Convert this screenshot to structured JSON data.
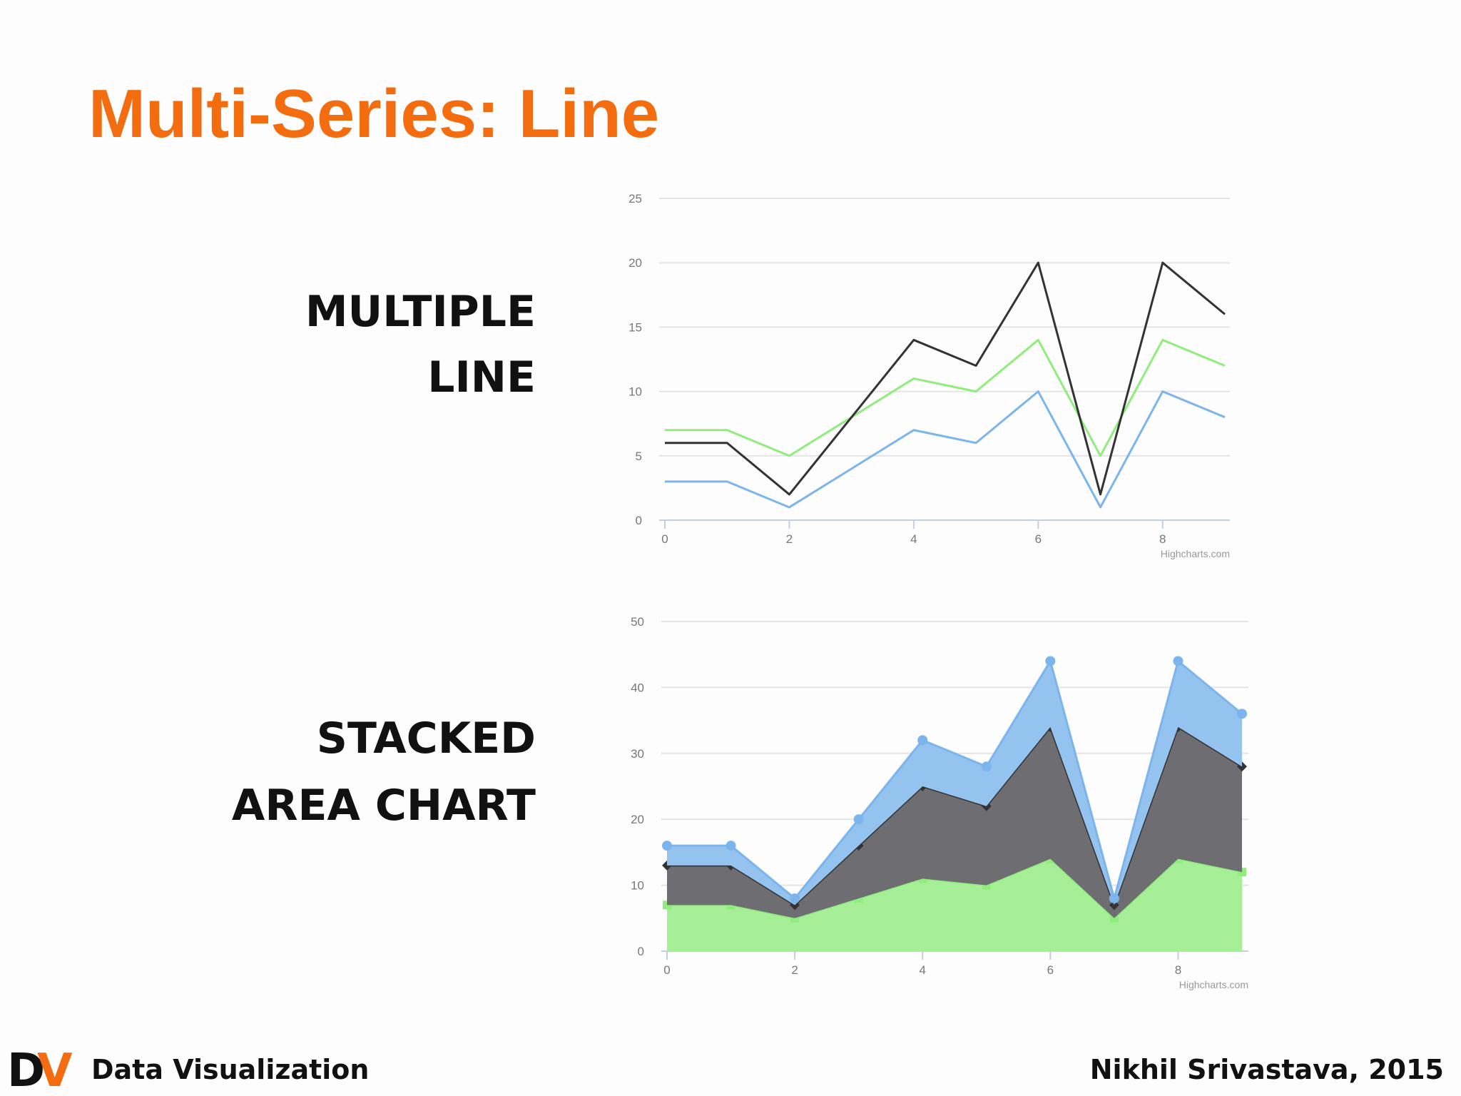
{
  "title": "Multi-Series: Line",
  "chart_data": [
    {
      "type": "line",
      "caption_lines": [
        "MULTIPLE",
        "LINE"
      ],
      "x": [
        0,
        1,
        2,
        3,
        4,
        5,
        6,
        7,
        8,
        9
      ],
      "series": [
        {
          "color": "#7cb5ec",
          "values": [
            3,
            3,
            1,
            4,
            7,
            6,
            10,
            1,
            10,
            8
          ]
        },
        {
          "color": "#90ed7d",
          "values": [
            7,
            7,
            5,
            8,
            11,
            10,
            14,
            5,
            14,
            12
          ]
        },
        {
          "color": "#333333",
          "values": [
            6,
            6,
            2,
            8,
            14,
            12,
            20,
            2,
            20,
            16
          ]
        }
      ],
      "xlim": [
        0,
        9
      ],
      "xticks": [
        0,
        2,
        4,
        6,
        8
      ],
      "ylim": [
        0,
        25
      ],
      "yticks": [
        0,
        5,
        10,
        15,
        20,
        25
      ],
      "grid": true,
      "credits": "Highcharts.com"
    },
    {
      "type": "area",
      "stacked": true,
      "caption_lines": [
        "STACKED",
        "AREA CHART"
      ],
      "x": [
        0,
        1,
        2,
        3,
        4,
        5,
        6,
        7,
        8,
        9
      ],
      "series": [
        {
          "color": "#90ed7d",
          "fill": "#a6ef97",
          "marker": "square",
          "values": [
            7,
            7,
            5,
            8,
            11,
            10,
            14,
            5,
            14,
            12
          ]
        },
        {
          "color": "#333333",
          "fill": "#6d6d72",
          "marker": "diamond",
          "values": [
            6,
            6,
            2,
            8,
            14,
            12,
            20,
            2,
            20,
            16
          ]
        },
        {
          "color": "#7cb5ec",
          "fill": "#94c3ef",
          "marker": "circle",
          "values": [
            3,
            3,
            1,
            4,
            7,
            6,
            10,
            1,
            10,
            8
          ]
        }
      ],
      "xlim": [
        0,
        9
      ],
      "xticks": [
        0,
        2,
        4,
        6,
        8
      ],
      "ylim": [
        0,
        50
      ],
      "yticks": [
        0,
        10,
        20,
        30,
        40,
        50
      ],
      "grid": true,
      "credits": "Highcharts.com"
    }
  ],
  "footer": {
    "logo": [
      "D",
      "V"
    ],
    "left": "Data Visualization",
    "right": "Nikhil Srivastava, 2015"
  }
}
